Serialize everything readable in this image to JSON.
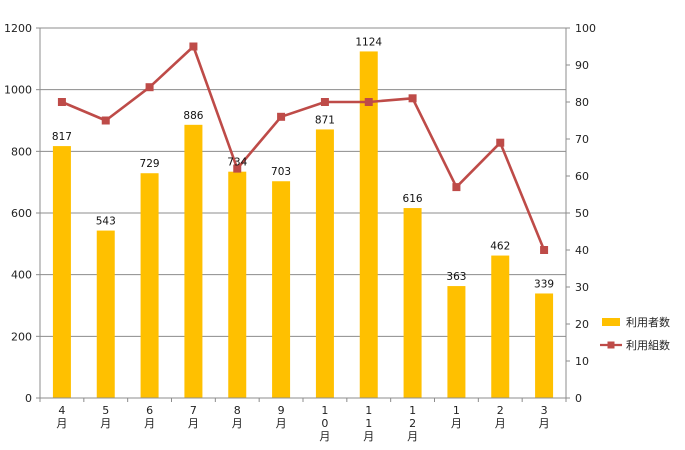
{
  "chart_data": {
    "type": "bar",
    "categories": [
      [
        "4",
        "月"
      ],
      [
        "5",
        "月"
      ],
      [
        "6",
        "月"
      ],
      [
        "7",
        "月"
      ],
      [
        "8",
        "月"
      ],
      [
        "9",
        "月"
      ],
      [
        "1",
        "0",
        "月"
      ],
      [
        "1",
        "1",
        "月"
      ],
      [
        "1",
        "2",
        "月"
      ],
      [
        "1",
        "月"
      ],
      [
        "2",
        "月"
      ],
      [
        "3",
        "月"
      ]
    ],
    "series": [
      {
        "name": "利用者数",
        "type": "bar",
        "axis": "left",
        "color": "#FFC000",
        "values": [
          817,
          543,
          729,
          886,
          734,
          703,
          871,
          1124,
          616,
          363,
          462,
          339
        ],
        "labels": [
          "817",
          "543",
          "729",
          "886",
          "734",
          "703",
          "871",
          "1124",
          "616",
          "363",
          "462",
          "339"
        ]
      },
      {
        "name": "利用組数",
        "type": "line",
        "axis": "right",
        "color": "#BE4B48",
        "values": [
          80,
          75,
          84,
          95,
          62,
          76,
          80,
          80,
          81,
          57,
          69,
          40
        ]
      }
    ],
    "y_left": {
      "min": 0,
      "max": 1200,
      "step": 200,
      "ticks": [
        "0",
        "200",
        "400",
        "600",
        "800",
        "1000",
        "1200"
      ]
    },
    "y_right": {
      "min": 0,
      "max": 100,
      "step": 10,
      "ticks": [
        "0",
        "10",
        "20",
        "30",
        "40",
        "50",
        "60",
        "70",
        "80",
        "90",
        "100"
      ]
    },
    "grid": true,
    "legend_position": "right"
  }
}
